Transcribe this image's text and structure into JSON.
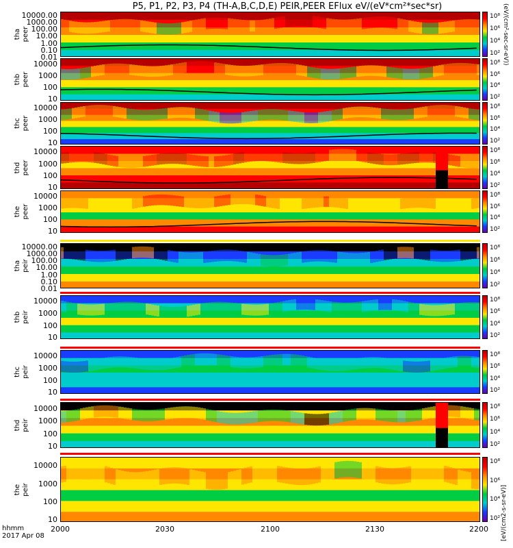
{
  "title": "P5, P1, P2, P3, P4 (TH-A,B,C,D,E) PEIR,PEER EFlux eV/(eV*cm²*sec*sr)",
  "time_axis": {
    "label_line1": "hhmm",
    "label_line2": "2017 Apr 08",
    "ticks": [
      "2000",
      "2030",
      "2100",
      "2130",
      "2200"
    ]
  },
  "colorbar": {
    "ticks": [
      "10⁸",
      "10⁶",
      "10⁴",
      "10²"
    ],
    "label_top": "(eV/(cm²-sec-sr-eV))",
    "label_bottom": "[eV/(cm2-s-sr-eV)]"
  },
  "chart_data": [
    {
      "type": "heatmap",
      "probe": "tha",
      "species": "peer",
      "ylabel": "tha\npeer",
      "yscale": "log",
      "yticks": [
        "10000.00",
        "1000.00",
        "100.00",
        "10.00",
        "1.00",
        "0.10",
        "0.01"
      ],
      "ylim": [
        0.01,
        30000
      ]
    },
    {
      "type": "heatmap",
      "probe": "thb",
      "species": "peer",
      "ylabel": "thb\npeer",
      "yscale": "log",
      "yticks": [
        "10000",
        "1000",
        "100",
        "10"
      ],
      "ylim": [
        7,
        30000
      ]
    },
    {
      "type": "heatmap",
      "probe": "thc",
      "species": "peer",
      "ylabel": "thc\npeer",
      "yscale": "log",
      "yticks": [
        "10000",
        "1000",
        "100",
        "10"
      ],
      "ylim": [
        7,
        30000
      ]
    },
    {
      "type": "heatmap",
      "probe": "thd",
      "species": "peer",
      "ylabel": "thd\npeer",
      "yscale": "log",
      "yticks": [
        "10000",
        "1000",
        "100",
        "10"
      ],
      "ylim": [
        7,
        30000
      ]
    },
    {
      "type": "heatmap",
      "probe": "the",
      "species": "peer",
      "ylabel": "the\npeer",
      "yscale": "log",
      "yticks": [
        "10000",
        "1000",
        "100",
        "10"
      ],
      "ylim": [
        7,
        30000
      ]
    },
    {
      "type": "heatmap",
      "probe": "tha",
      "species": "peir",
      "ylabel": "tha\npeir",
      "yscale": "log",
      "yticks": [
        "10000.00",
        "1000.00",
        "100.00",
        "10.00",
        "1.00",
        "0.10",
        "0.01"
      ],
      "ylim": [
        0.01,
        30000
      ]
    },
    {
      "type": "heatmap",
      "probe": "thb",
      "species": "peir",
      "ylabel": "thb\npeir",
      "yscale": "log",
      "yticks": [
        "10000",
        "1000",
        "100",
        "10"
      ],
      "ylim": [
        7,
        30000
      ]
    },
    {
      "type": "heatmap",
      "probe": "thc",
      "species": "peir",
      "ylabel": "thc\npeir",
      "yscale": "log",
      "yticks": [
        "10000",
        "1000",
        "100",
        "10"
      ],
      "ylim": [
        7,
        30000
      ]
    },
    {
      "type": "heatmap",
      "probe": "thd",
      "species": "peir",
      "ylabel": "thd\npeir",
      "yscale": "log",
      "yticks": [
        "10000",
        "1000",
        "100",
        "10"
      ],
      "ylim": [
        7,
        30000
      ]
    },
    {
      "type": "heatmap",
      "probe": "the",
      "species": "peir",
      "ylabel": "the\npeir",
      "yscale": "log",
      "yticks": [
        "10000",
        "1000",
        "100",
        "10"
      ],
      "ylim": [
        7,
        30000
      ]
    }
  ],
  "colors": {
    "dark_red": "#b40000",
    "red": "#ff0000",
    "orange": "#ff8800",
    "yellow": "#ffe600",
    "green": "#00cc44",
    "cyan": "#00cccc",
    "blue": "#1a3cff",
    "purple": "#6a00a8",
    "black": "#000000"
  }
}
